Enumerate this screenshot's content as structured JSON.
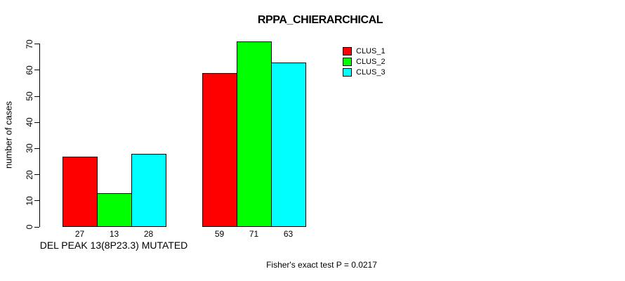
{
  "chart_data": {
    "type": "bar",
    "title": "RPPA_CHIERARCHICAL",
    "ylabel": "number of cases",
    "xlabel": "DEL PEAK 13(8P23.3) MUTATED",
    "annotation": "Fisher's exact test P = 0.0217",
    "ylim": [
      0,
      70
    ],
    "yticks": [
      0,
      10,
      20,
      30,
      40,
      50,
      60,
      70
    ],
    "grid": false,
    "legend_position": "top-right",
    "series": [
      {
        "name": "CLUS_1",
        "color": "#ff0000",
        "values": [
          27,
          59
        ]
      },
      {
        "name": "CLUS_2",
        "color": "#00ff00",
        "values": [
          13,
          71
        ]
      },
      {
        "name": "CLUS_3",
        "color": "#00ffff",
        "values": [
          28,
          63
        ]
      }
    ],
    "bar_value_labels": [
      [
        27,
        13,
        28
      ],
      [
        59,
        71,
        63
      ]
    ],
    "bar_border_color": "#000000",
    "text_color": "#000000",
    "background_color": "#ffffff"
  }
}
